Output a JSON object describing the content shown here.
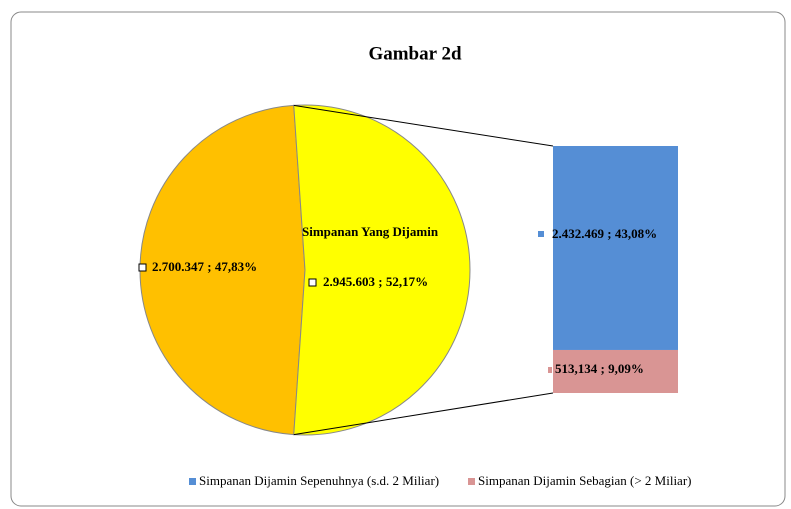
{
  "chart_data": {
    "type": "pie",
    "title": "Gambar 2d",
    "categories": [
      null,
      "Simpanan Yang Dijamin"
    ],
    "values": [
      2700347,
      2945603
    ],
    "value_labels": [
      "2.700.347 ; 47,83%",
      "2.945.603 ; 52,17%"
    ],
    "colors": [
      "#ffc000",
      "#ffff00"
    ],
    "breakdown": {
      "categories": [
        "Simpanan Dijamin Sepenuhnya (s.d. 2 Miliar)",
        "Simpanan Dijamin Sebagian (> 2 Miliar)"
      ],
      "values": [
        2432469,
        513134
      ],
      "value_labels": [
        "2.432.469 ; 43,08%",
        "513,134 ; 9,09%"
      ],
      "colors": [
        "#558ed5",
        "#d99594"
      ]
    },
    "legend": "bottom"
  }
}
